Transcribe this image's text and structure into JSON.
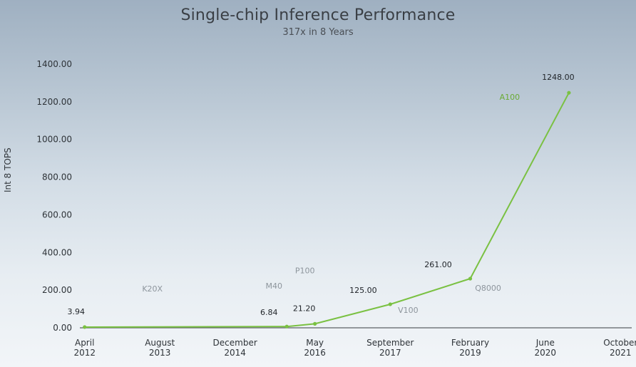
{
  "chart_data": {
    "type": "line",
    "title": "Single-chip Inference Performance",
    "subtitle": "317x in 8 Years",
    "ylabel": "Int 8 TOPS",
    "ylim": [
      0,
      1400
    ],
    "yticks": [
      "0.00",
      "200.00",
      "400.00",
      "600.00",
      "800.00",
      "1000.00",
      "1200.00",
      "1400.00"
    ],
    "ytick_values": [
      0,
      200,
      400,
      600,
      800,
      1000,
      1200,
      1400
    ],
    "x_range": [
      "2012-03-01",
      "2021-11-15"
    ],
    "xticks": [
      {
        "date": "2012-04-01",
        "label1": "April",
        "label2": "2012"
      },
      {
        "date": "2013-08-01",
        "label1": "August",
        "label2": "2013"
      },
      {
        "date": "2014-12-01",
        "label1": "December",
        "label2": "2014"
      },
      {
        "date": "2016-05-01",
        "label1": "May",
        "label2": "2016"
      },
      {
        "date": "2017-09-01",
        "label1": "September",
        "label2": "2017"
      },
      {
        "date": "2019-02-01",
        "label1": "February",
        "label2": "2019"
      },
      {
        "date": "2020-06-01",
        "label1": "June",
        "label2": "2020"
      },
      {
        "date": "2021-10-01",
        "label1": "October",
        "label2": "2021"
      }
    ],
    "points": [
      {
        "date": "2012-04-01",
        "value": 3.94,
        "label": "3.94",
        "gpu": "K20X"
      },
      {
        "date": "2015-11-01",
        "value": 6.84,
        "label": "6.84",
        "gpu": "M40"
      },
      {
        "date": "2016-05-01",
        "value": 21.2,
        "label": "21.20",
        "gpu": "P100"
      },
      {
        "date": "2017-09-01",
        "value": 125,
        "label": "125.00",
        "gpu": "V100"
      },
      {
        "date": "2019-02-01",
        "value": 261,
        "label": "261.00",
        "gpu": "Q8000"
      },
      {
        "date": "2020-11-01",
        "value": 1248,
        "label": "1248.00",
        "gpu": "A100"
      }
    ],
    "grid": false,
    "line_color": "#7ac142",
    "gpu_label_color": "#8d959c",
    "highlight_label_color": "#6aab34"
  }
}
